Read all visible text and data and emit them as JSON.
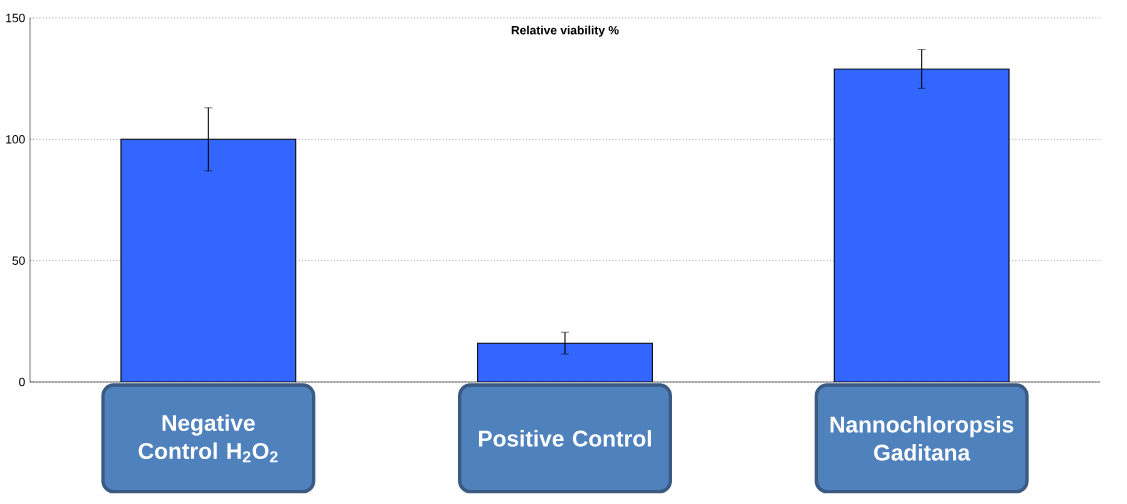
{
  "chart_data": {
    "type": "bar",
    "title": "Relative viability %",
    "categories": [
      "Negative Control H$_{2}$O$_{2}$",
      "Positive Control",
      "Nannochloropsis Gaditana"
    ],
    "values": [
      100,
      16,
      129
    ],
    "errors": [
      13,
      4.5,
      8
    ],
    "color": "#3366ff",
    "ylim": [
      0,
      150
    ],
    "yticks": [
      0,
      50,
      100,
      150
    ],
    "grid": "y"
  }
}
